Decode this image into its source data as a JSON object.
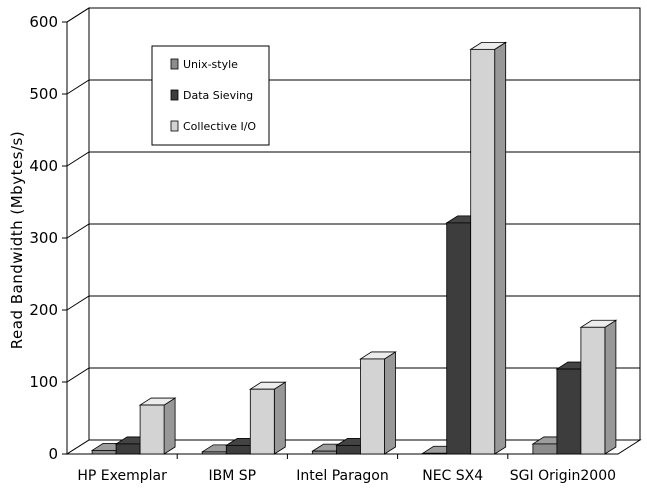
{
  "chart_data": {
    "type": "bar",
    "title": "",
    "xlabel": "",
    "ylabel": "Read Bandwidth (Mbytes/s)",
    "ylim": [
      0,
      600
    ],
    "yticks": [
      0,
      100,
      200,
      300,
      400,
      500,
      600
    ],
    "grid": true,
    "legend_position": "upper-left",
    "style": "3d-column",
    "categories": [
      "HP Exemplar",
      "IBM SP",
      "Intel Paragon",
      "NEC SX4",
      "SGI Origin2000"
    ],
    "series": [
      {
        "name": "Unix-style",
        "color": "#8c8c8c",
        "values": [
          5,
          3,
          4,
          1,
          14
        ]
      },
      {
        "name": "Data Sieving",
        "color": "#3d3d3d",
        "values": [
          14,
          12,
          12,
          321,
          118
        ]
      },
      {
        "name": "Collective I/O",
        "color": "#d3d3d3",
        "values": [
          68,
          90,
          132,
          562,
          176
        ]
      }
    ]
  }
}
